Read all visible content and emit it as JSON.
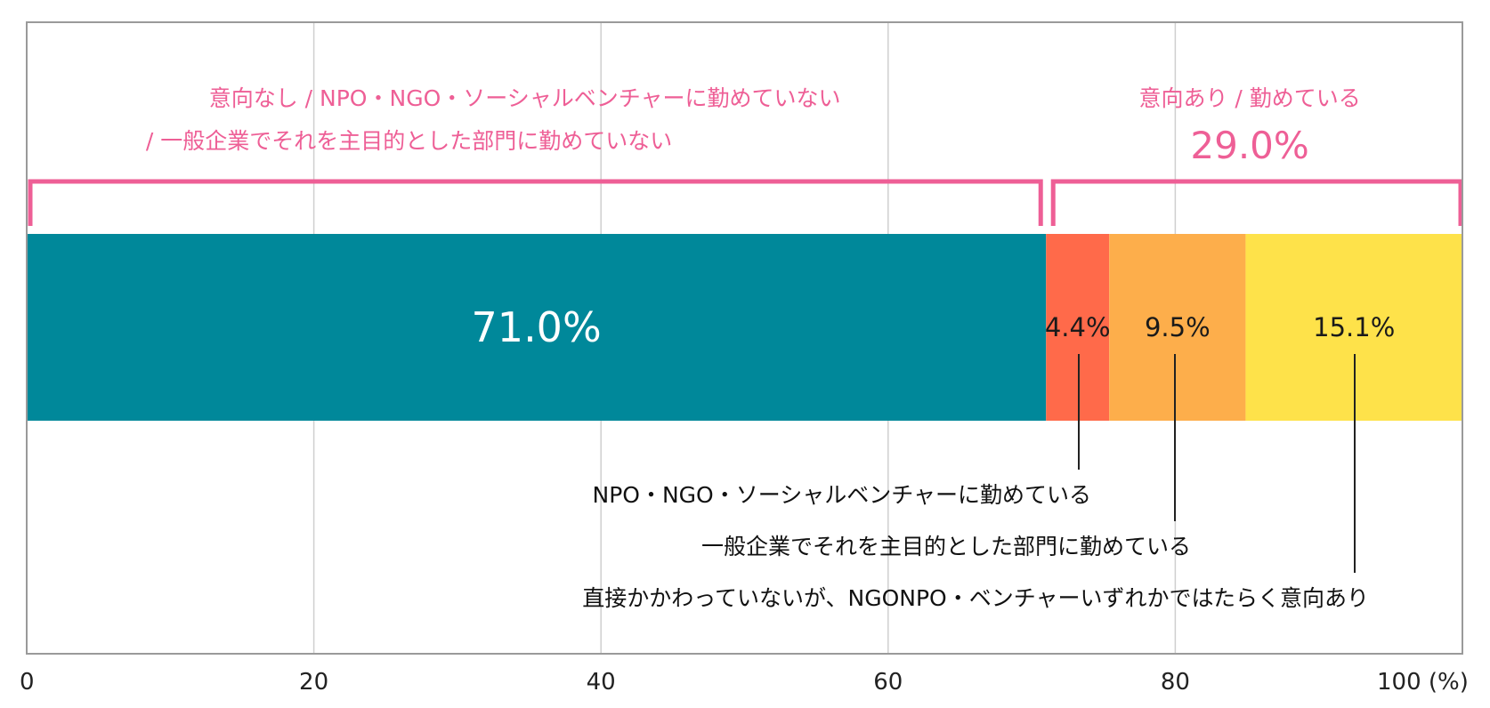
{
  "chart_data": {
    "type": "bar",
    "orientation": "horizontal-stacked-100",
    "xlim": [
      0,
      100
    ],
    "x_ticks": [
      0,
      20,
      40,
      60,
      80,
      100
    ],
    "x_tick_labels": [
      "0",
      "20",
      "40",
      "60",
      "80",
      "100 (%)"
    ],
    "grid": true,
    "series": [
      {
        "name": "意向なし / NPO・NGO・ソーシャルベンチャーに勤めていない / 一般企業でそれを主目的とした部門に勤めていない",
        "value": 71.0,
        "label": "71.0%",
        "color": "#00889a"
      },
      {
        "name": "NPO・NGO・ソーシャルベンチャーに勤めている",
        "value": 4.4,
        "label": "4.4%",
        "color": "#ff6a4a"
      },
      {
        "name": "一般企業でそれを主目的とした部門に勤めている",
        "value": 9.5,
        "label": "9.5%",
        "color": "#fdae4b"
      },
      {
        "name": "直接かかわっていないが、NGONPO・ベンチャーいずれかではたらく意向あり",
        "value": 15.1,
        "label": "15.1%",
        "color": "#fee24a"
      }
    ],
    "annotations": {
      "left_brace": {
        "line1": "意向なし / NPO・NGO・ソーシャルベンチャーに勤めていない",
        "line2": "/ 一般企業でそれを主目的とした部門に勤めていない"
      },
      "right_brace": {
        "line1": "意向あり / 勤めている",
        "total": "29.0%"
      }
    },
    "callouts": [
      {
        "series_index": 1,
        "text": "NPO・NGO・ソーシャルベンチャーに勤めている"
      },
      {
        "series_index": 2,
        "text": "一般企業でそれを主目的とした部門に勤めている"
      },
      {
        "series_index": 3,
        "text": "直接かかわっていないが、NGONPO・ベンチャーいずれかではたらく意向あり"
      }
    ],
    "colors": {
      "brace": "#ee5f96",
      "grid": "#cfcfcf",
      "frame": "#9a9a9a"
    }
  }
}
